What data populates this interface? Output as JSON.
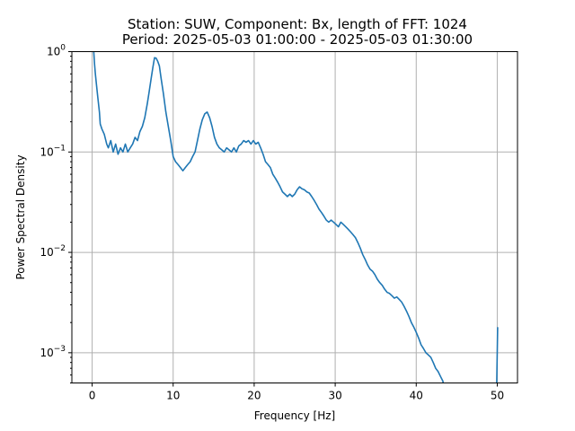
{
  "chart_data": {
    "type": "line",
    "title_line1": "Station: SUW, Component: Bx, length of FFT: 1024",
    "title_line2": "Period: 2025-05-03 01:00:00 - 2025-05-03 01:30:00",
    "xlabel": "Frequency [Hz]",
    "ylabel": "Power Spectral Density",
    "xlim": [
      -2.5,
      52.5
    ],
    "ylim": [
      0.0005,
      1
    ],
    "yscale": "log",
    "grid": true,
    "x_ticks": [
      {
        "value": 0,
        "label": "0"
      },
      {
        "value": 10,
        "label": "10"
      },
      {
        "value": 20,
        "label": "20"
      },
      {
        "value": 30,
        "label": "30"
      },
      {
        "value": 40,
        "label": "40"
      },
      {
        "value": 50,
        "label": "50"
      }
    ],
    "y_ticks": [
      {
        "value": 0.001,
        "base": "10",
        "exp": "−3"
      },
      {
        "value": 0.01,
        "base": "10",
        "exp": "−2"
      },
      {
        "value": 0.1,
        "base": "10",
        "exp": "−1"
      },
      {
        "value": 1,
        "base": "10",
        "exp": "0"
      }
    ],
    "color": "#1f77b4",
    "series": [
      {
        "x": [
          0.1,
          0.2,
          0.3,
          0.4,
          0.5,
          0.7,
          0.9,
          1.0,
          1.2,
          1.5,
          1.8,
          2.0,
          2.3,
          2.6,
          2.9,
          3.2,
          3.5,
          3.8,
          4.1,
          4.4,
          4.7,
          5.0,
          5.3,
          5.6,
          5.9,
          6.2,
          6.5,
          6.8,
          7.0,
          7.3,
          7.5,
          7.7,
          7.9,
          8.1,
          8.3,
          8.5,
          8.8,
          9.1,
          9.4,
          9.7,
          10.0,
          10.3,
          10.6,
          10.9,
          11.2,
          11.5,
          11.8,
          12.1,
          12.4,
          12.7,
          13.0,
          13.3,
          13.6,
          13.9,
          14.2,
          14.5,
          14.8,
          15.1,
          15.4,
          15.7,
          16.0,
          16.3,
          16.6,
          16.9,
          17.2,
          17.5,
          17.8,
          18.1,
          18.4,
          18.7,
          19.0,
          19.3,
          19.6,
          19.9,
          20.2,
          20.5,
          20.8,
          21.1,
          21.4,
          21.7,
          22.0,
          22.3,
          22.6,
          22.9,
          23.2,
          23.5,
          23.8,
          24.1,
          24.4,
          24.7,
          25.0,
          25.3,
          25.6,
          25.9,
          26.2,
          26.5,
          26.8,
          27.1,
          27.4,
          27.7,
          28.0,
          28.3,
          28.6,
          28.9,
          29.2,
          29.5,
          29.8,
          30.1,
          30.4,
          30.7,
          31.0,
          31.3,
          31.6,
          31.9,
          32.2,
          32.5,
          32.8,
          33.1,
          33.4,
          33.7,
          34.0,
          34.3,
          34.6,
          34.9,
          35.2,
          35.5,
          35.8,
          36.1,
          36.4,
          36.7,
          37.0,
          37.3,
          37.6,
          37.9,
          38.2,
          38.5,
          38.8,
          39.1,
          39.4,
          39.7,
          40.0,
          40.3,
          40.6,
          40.9,
          41.2,
          41.5,
          41.8,
          42.1,
          42.4,
          42.7,
          43.0,
          43.3,
          43.5,
          49.9,
          50.0,
          50.05
        ],
        "values": [
          1.2,
          1.0,
          0.75,
          0.6,
          0.5,
          0.35,
          0.25,
          0.19,
          0.17,
          0.15,
          0.12,
          0.11,
          0.13,
          0.1,
          0.12,
          0.095,
          0.11,
          0.1,
          0.12,
          0.1,
          0.11,
          0.12,
          0.14,
          0.13,
          0.16,
          0.18,
          0.22,
          0.3,
          0.38,
          0.55,
          0.7,
          0.87,
          0.86,
          0.8,
          0.72,
          0.55,
          0.38,
          0.25,
          0.18,
          0.13,
          0.09,
          0.08,
          0.075,
          0.07,
          0.065,
          0.07,
          0.075,
          0.08,
          0.09,
          0.1,
          0.13,
          0.17,
          0.21,
          0.24,
          0.25,
          0.22,
          0.18,
          0.14,
          0.12,
          0.11,
          0.105,
          0.1,
          0.11,
          0.105,
          0.1,
          0.11,
          0.1,
          0.115,
          0.12,
          0.13,
          0.125,
          0.13,
          0.12,
          0.13,
          0.12,
          0.125,
          0.11,
          0.095,
          0.08,
          0.075,
          0.07,
          0.06,
          0.055,
          0.05,
          0.045,
          0.04,
          0.038,
          0.036,
          0.038,
          0.036,
          0.038,
          0.042,
          0.045,
          0.043,
          0.042,
          0.04,
          0.039,
          0.036,
          0.033,
          0.03,
          0.027,
          0.025,
          0.023,
          0.021,
          0.02,
          0.021,
          0.02,
          0.019,
          0.018,
          0.02,
          0.019,
          0.018,
          0.017,
          0.016,
          0.015,
          0.014,
          0.0125,
          0.011,
          0.0095,
          0.0085,
          0.0075,
          0.0068,
          0.0065,
          0.006,
          0.0054,
          0.005,
          0.0047,
          0.0043,
          0.004,
          0.0039,
          0.0037,
          0.0035,
          0.0036,
          0.0034,
          0.0032,
          0.0029,
          0.0026,
          0.0023,
          0.002,
          0.0018,
          0.0016,
          0.0014,
          0.0012,
          0.0011,
          0.001,
          0.00095,
          0.0009,
          0.0008,
          0.0007,
          0.00065,
          0.00058,
          0.00052,
          0.0005,
          0.0005,
          0.001,
          0.0018
        ]
      }
    ]
  }
}
